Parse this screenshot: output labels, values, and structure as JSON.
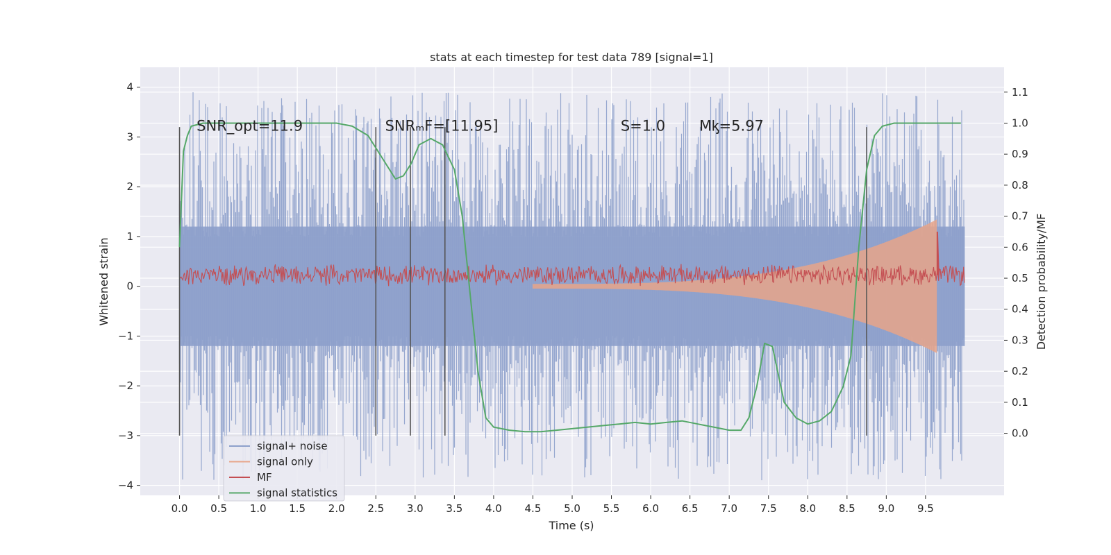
{
  "chart_data": {
    "type": "line",
    "title": "stats at each timestep for test data 789 [signal=1]",
    "xlabel": "Time (s)",
    "ylabel": "Whitened strain",
    "ylabel_right": "Detection probability/MF",
    "xlim": [
      -0.5,
      10.5
    ],
    "ylim": [
      -4.2,
      4.4
    ],
    "ylim_right": [
      -0.2,
      1.18
    ],
    "x_ticks": [
      "0.0",
      "0.5",
      "1.0",
      "1.5",
      "2.0",
      "2.5",
      "3.0",
      "3.5",
      "4.0",
      "4.5",
      "5.0",
      "5.5",
      "6.0",
      "6.5",
      "7.0",
      "7.5",
      "8.0",
      "8.5",
      "9.0",
      "9.5"
    ],
    "y_ticks": [
      "4",
      "3",
      "2",
      "1",
      "0",
      "−1",
      "−2",
      "−3",
      "−4"
    ],
    "y_ticks_right": [
      "1.1",
      "1.0",
      "0.9",
      "0.8",
      "0.7",
      "0.6",
      "0.5",
      "0.4",
      "0.3",
      "0.2",
      "0.1",
      "0.0"
    ],
    "grid": true,
    "legend_position": "lower-left",
    "annotations": [
      {
        "text": "SNR_opt=11.9",
        "x": 0.2
      },
      {
        "text": "SNRₘF=[11.95]",
        "x": 2.6
      },
      {
        "text": "S=1.0",
        "x": 5.6
      },
      {
        "text": "Mᶄ=5.97",
        "x": 6.6
      }
    ],
    "vertical_markers": [
      0.0,
      2.5,
      2.94,
      3.38,
      8.75
    ],
    "series": [
      {
        "name": "signal+ noise",
        "color": "#8da0cb",
        "axis": "left",
        "band": {
          "inner_amplitude": 1.2,
          "outer_amplitude": 3.9,
          "x_start": 0.0,
          "x_end": 10.0
        }
      },
      {
        "name": "signal only",
        "color": "#e8a58a",
        "axis": "left",
        "chirp": {
          "x_start": 4.5,
          "x_merger": 9.65,
          "peak_amplitude": 1.3
        }
      },
      {
        "name": "MF",
        "color": "#c44e52",
        "axis": "right",
        "baseline": 0.51,
        "noise_amplitude": 0.03,
        "peak": {
          "x": 9.65,
          "value": 0.65
        }
      },
      {
        "name": "signal statistics",
        "color": "#55a868",
        "axis": "right",
        "x": [
          0.0,
          0.05,
          0.1,
          0.15,
          0.3,
          0.6,
          1.0,
          1.5,
          2.0,
          2.2,
          2.4,
          2.6,
          2.75,
          2.85,
          2.95,
          3.05,
          3.2,
          3.35,
          3.5,
          3.6,
          3.7,
          3.8,
          3.9,
          4.0,
          4.2,
          4.4,
          4.6,
          4.8,
          5.0,
          5.2,
          5.4,
          5.6,
          5.8,
          6.0,
          6.2,
          6.4,
          6.6,
          6.8,
          7.0,
          7.15,
          7.25,
          7.35,
          7.45,
          7.55,
          7.7,
          7.85,
          8.0,
          8.15,
          8.3,
          8.45,
          8.55,
          8.65,
          8.75,
          8.85,
          8.95,
          9.1,
          9.5,
          9.95
        ],
        "y": [
          0.6,
          0.91,
          0.96,
          0.99,
          1.0,
          1.0,
          1.0,
          1.0,
          1.0,
          0.99,
          0.96,
          0.88,
          0.82,
          0.83,
          0.87,
          0.93,
          0.95,
          0.93,
          0.85,
          0.7,
          0.45,
          0.2,
          0.05,
          0.02,
          0.01,
          0.005,
          0.005,
          0.01,
          0.015,
          0.02,
          0.025,
          0.03,
          0.035,
          0.03,
          0.035,
          0.04,
          0.03,
          0.02,
          0.01,
          0.01,
          0.05,
          0.15,
          0.29,
          0.28,
          0.1,
          0.05,
          0.03,
          0.04,
          0.07,
          0.15,
          0.25,
          0.6,
          0.85,
          0.96,
          0.99,
          1.0,
          1.0,
          1.0
        ]
      }
    ]
  }
}
